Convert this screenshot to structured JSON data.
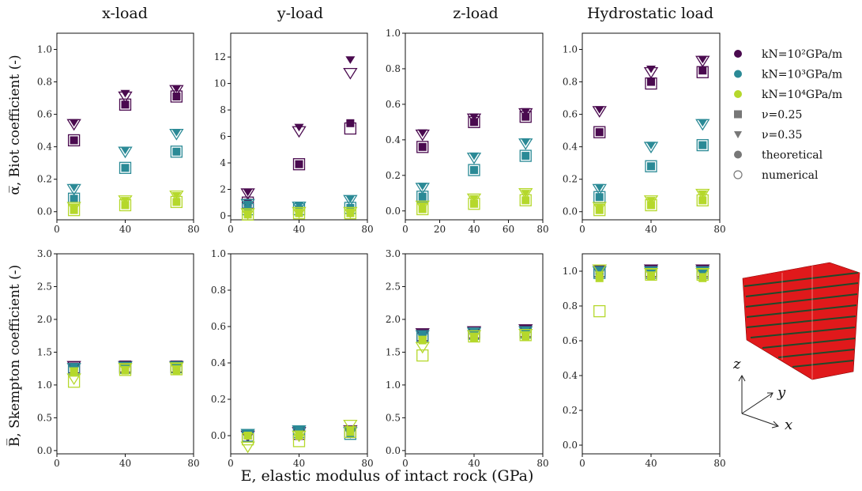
{
  "figure": {
    "column_titles": [
      "x-load",
      "y-load",
      "z-load",
      "Hydrostatic load"
    ],
    "ylabel_top": "α̅, Biot coefficient (-)",
    "ylabel_bottom": "B̅, Skempton coefficient (-)",
    "xlabel": "E, elastic modulus of intact rock (GPa)",
    "legend": [
      {
        "label": "kN=10²GPa/m",
        "marker": "circle",
        "color": "#4a0a4f"
      },
      {
        "label": "kN=10³GPa/m",
        "marker": "circle",
        "color": "#2b8a96"
      },
      {
        "label": "kN=10⁴GPa/m",
        "marker": "circle",
        "color": "#b5d82c"
      },
      {
        "label": "ν=0.25",
        "marker": "square",
        "color": "#777777"
      },
      {
        "label": "ν=0.35",
        "marker": "triangle",
        "color": "#777777"
      },
      {
        "label": "theoretical",
        "marker": "circle",
        "color": "#777777"
      },
      {
        "label": "numerical",
        "marker": "open-circle",
        "color": "#777777"
      }
    ],
    "axes_labels": {
      "z": "z",
      "y": "y",
      "x": "x"
    },
    "colors": {
      "kN_1e2": "#4a0a4f",
      "kN_1e3": "#2b8a96",
      "kN_1e4": "#b5d82c",
      "cube_red": "#e0191b",
      "cube_dark": "#1f4a2a"
    }
  },
  "chart_data": [
    {
      "type": "scatter",
      "row": 0,
      "col": 0,
      "xlim": [
        0,
        80
      ],
      "ylim": [
        -0.05,
        1.1
      ],
      "xticks": [
        0,
        40,
        80
      ],
      "yticks": [
        0.0,
        0.2,
        0.4,
        0.6,
        0.8,
        1.0
      ],
      "x": [
        10,
        40,
        70
      ],
      "series": [
        {
          "kN": "1e2",
          "nu": 0.25,
          "theoretical": [
            0.44,
            0.66,
            0.71
          ],
          "numerical": [
            0.44,
            0.66,
            0.71
          ]
        },
        {
          "kN": "1e2",
          "nu": 0.35,
          "theoretical": [
            0.55,
            0.73,
            0.76
          ],
          "numerical": [
            0.54,
            0.71,
            0.75
          ]
        },
        {
          "kN": "1e3",
          "nu": 0.25,
          "theoretical": [
            0.08,
            0.27,
            0.37
          ],
          "numerical": [
            0.08,
            0.27,
            0.37
          ]
        },
        {
          "kN": "1e3",
          "nu": 0.35,
          "theoretical": [
            0.15,
            0.38,
            0.49
          ],
          "numerical": [
            0.14,
            0.37,
            0.48
          ]
        },
        {
          "kN": "1e4",
          "nu": 0.25,
          "theoretical": [
            0.01,
            0.04,
            0.06
          ],
          "numerical": [
            0.01,
            0.04,
            0.06
          ]
        },
        {
          "kN": "1e4",
          "nu": 0.35,
          "theoretical": [
            0.03,
            0.07,
            0.1
          ],
          "numerical": [
            0.03,
            0.07,
            0.1
          ]
        }
      ]
    },
    {
      "type": "scatter",
      "row": 0,
      "col": 1,
      "xlim": [
        0,
        80
      ],
      "ylim": [
        -0.3,
        13.8
      ],
      "xticks": [
        0,
        40,
        80
      ],
      "yticks": [
        0,
        2,
        4,
        6,
        8,
        10,
        12
      ],
      "x": [
        10,
        40,
        70
      ],
      "series": [
        {
          "kN": "1e2",
          "nu": 0.25,
          "theoretical": [
            1.0,
            3.9,
            7.0
          ],
          "numerical": [
            1.0,
            3.9,
            6.6
          ]
        },
        {
          "kN": "1e2",
          "nu": 0.35,
          "theoretical": [
            1.8,
            6.7,
            11.8
          ],
          "numerical": [
            1.7,
            6.4,
            10.8
          ]
        },
        {
          "kN": "1e3",
          "nu": 0.25,
          "theoretical": [
            0.5,
            0.5,
            0.6
          ],
          "numerical": [
            0.5,
            0.5,
            0.6
          ]
        },
        {
          "kN": "1e3",
          "nu": 0.35,
          "theoretical": [
            0.9,
            0.8,
            1.3
          ],
          "numerical": [
            0.9,
            0.7,
            1.2
          ]
        },
        {
          "kN": "1e4",
          "nu": 0.25,
          "theoretical": [
            0.1,
            0.2,
            0.2
          ],
          "numerical": [
            0.1,
            0.2,
            0.2
          ]
        },
        {
          "kN": "1e4",
          "nu": 0.35,
          "theoretical": [
            0.2,
            0.3,
            0.3
          ],
          "numerical": [
            0.2,
            0.3,
            0.3
          ]
        }
      ]
    },
    {
      "type": "scatter",
      "row": 0,
      "col": 2,
      "xlim": [
        0,
        80
      ],
      "ylim": [
        -0.05,
        1.0
      ],
      "xticks": [
        0,
        20,
        40,
        60,
        80
      ],
      "yticks": [
        0.0,
        0.2,
        0.4,
        0.6,
        0.8,
        1.0
      ],
      "x": [
        10,
        40,
        70
      ],
      "series": [
        {
          "kN": "1e2",
          "nu": 0.25,
          "theoretical": [
            0.36,
            0.5,
            0.53
          ],
          "numerical": [
            0.36,
            0.5,
            0.53
          ]
        },
        {
          "kN": "1e2",
          "nu": 0.35,
          "theoretical": [
            0.44,
            0.53,
            0.56
          ],
          "numerical": [
            0.43,
            0.52,
            0.55
          ]
        },
        {
          "kN": "1e3",
          "nu": 0.25,
          "theoretical": [
            0.08,
            0.23,
            0.31
          ],
          "numerical": [
            0.08,
            0.23,
            0.31
          ]
        },
        {
          "kN": "1e3",
          "nu": 0.35,
          "theoretical": [
            0.14,
            0.31,
            0.39
          ],
          "numerical": [
            0.13,
            0.3,
            0.38
          ]
        },
        {
          "kN": "1e4",
          "nu": 0.25,
          "theoretical": [
            0.01,
            0.04,
            0.06
          ],
          "numerical": [
            0.01,
            0.04,
            0.06
          ]
        },
        {
          "kN": "1e4",
          "nu": 0.35,
          "theoretical": [
            0.03,
            0.07,
            0.1
          ],
          "numerical": [
            0.03,
            0.07,
            0.1
          ]
        }
      ]
    },
    {
      "type": "scatter",
      "row": 0,
      "col": 3,
      "xlim": [
        0,
        80
      ],
      "ylim": [
        -0.05,
        1.1
      ],
      "xticks": [
        0,
        40,
        80
      ],
      "yticks": [
        0.0,
        0.2,
        0.4,
        0.6,
        0.8,
        1.0
      ],
      "x": [
        10,
        40,
        70
      ],
      "series": [
        {
          "kN": "1e2",
          "nu": 0.25,
          "theoretical": [
            0.49,
            0.8,
            0.87
          ],
          "numerical": [
            0.49,
            0.79,
            0.86
          ]
        },
        {
          "kN": "1e2",
          "nu": 0.35,
          "theoretical": [
            0.63,
            0.88,
            0.94
          ],
          "numerical": [
            0.62,
            0.86,
            0.93
          ]
        },
        {
          "kN": "1e3",
          "nu": 0.25,
          "theoretical": [
            0.09,
            0.28,
            0.41
          ],
          "numerical": [
            0.09,
            0.28,
            0.41
          ]
        },
        {
          "kN": "1e3",
          "nu": 0.35,
          "theoretical": [
            0.15,
            0.41,
            0.55
          ],
          "numerical": [
            0.14,
            0.4,
            0.54
          ]
        },
        {
          "kN": "1e4",
          "nu": 0.25,
          "theoretical": [
            0.01,
            0.04,
            0.07
          ],
          "numerical": [
            0.01,
            0.04,
            0.07
          ]
        },
        {
          "kN": "1e4",
          "nu": 0.35,
          "theoretical": [
            0.03,
            0.07,
            0.11
          ],
          "numerical": [
            0.03,
            0.07,
            0.11
          ]
        }
      ]
    },
    {
      "type": "scatter",
      "row": 1,
      "col": 0,
      "xlim": [
        0,
        80
      ],
      "ylim": [
        -0.05,
        3.0
      ],
      "xticks": [
        0,
        40,
        80
      ],
      "yticks": [
        0.0,
        0.5,
        1.0,
        1.5,
        2.0,
        2.5,
        3.0
      ],
      "x": [
        10,
        40,
        70
      ],
      "series": [
        {
          "kN": "1e2",
          "nu": 0.25,
          "theoretical": [
            1.27,
            1.28,
            1.28
          ],
          "numerical": [
            1.27,
            1.28,
            1.28
          ]
        },
        {
          "kN": "1e2",
          "nu": 0.35,
          "theoretical": [
            1.29,
            1.29,
            1.29
          ],
          "numerical": [
            1.29,
            1.29,
            1.29
          ]
        },
        {
          "kN": "1e3",
          "nu": 0.25,
          "theoretical": [
            1.24,
            1.26,
            1.27
          ],
          "numerical": [
            1.24,
            1.26,
            1.27
          ]
        },
        {
          "kN": "1e3",
          "nu": 0.35,
          "theoretical": [
            1.27,
            1.28,
            1.28
          ],
          "numerical": [
            1.26,
            1.28,
            1.28
          ]
        },
        {
          "kN": "1e4",
          "nu": 0.25,
          "theoretical": [
            1.2,
            1.22,
            1.22
          ],
          "numerical": [
            1.05,
            1.23,
            1.24
          ]
        },
        {
          "kN": "1e4",
          "nu": 0.35,
          "theoretical": [
            1.22,
            1.24,
            1.25
          ],
          "numerical": [
            1.1,
            1.26,
            1.27
          ]
        }
      ]
    },
    {
      "type": "scatter",
      "row": 1,
      "col": 1,
      "xlim": [
        0,
        80
      ],
      "ylim": [
        -0.1,
        1.0
      ],
      "xticks": [
        0,
        40,
        80
      ],
      "yticks": [
        0.0,
        0.2,
        0.4,
        0.6,
        0.8,
        1.0
      ],
      "x": [
        10,
        40,
        70
      ],
      "series": [
        {
          "kN": "1e2",
          "nu": 0.25,
          "theoretical": [
            0.0,
            0.01,
            0.02
          ],
          "numerical": [
            0.0,
            0.01,
            0.02
          ]
        },
        {
          "kN": "1e2",
          "nu": 0.35,
          "theoretical": [
            0.0,
            0.02,
            0.03
          ],
          "numerical": [
            0.0,
            0.02,
            0.03
          ]
        },
        {
          "kN": "1e3",
          "nu": 0.25,
          "theoretical": [
            0.0,
            0.02,
            0.01
          ],
          "numerical": [
            0.0,
            0.02,
            0.01
          ]
        },
        {
          "kN": "1e3",
          "nu": 0.35,
          "theoretical": [
            0.01,
            0.03,
            0.02
          ],
          "numerical": [
            0.01,
            0.03,
            0.02
          ]
        },
        {
          "kN": "1e4",
          "nu": 0.25,
          "theoretical": [
            0.0,
            0.0,
            0.02
          ],
          "numerical": [
            -0.02,
            -0.03,
            0.02
          ]
        },
        {
          "kN": "1e4",
          "nu": 0.35,
          "theoretical": [
            0.0,
            0.01,
            0.03
          ],
          "numerical": [
            -0.06,
            0.0,
            0.06
          ]
        }
      ]
    },
    {
      "type": "scatter",
      "row": 1,
      "col": 2,
      "xlim": [
        0,
        80
      ],
      "ylim": [
        -0.05,
        3.0
      ],
      "xticks": [
        0,
        40,
        80
      ],
      "yticks": [
        0.0,
        0.5,
        1.0,
        1.5,
        2.0,
        2.5,
        3.0
      ],
      "x": [
        10,
        40,
        70
      ],
      "series": [
        {
          "kN": "1e2",
          "nu": 0.25,
          "theoretical": [
            1.76,
            1.8,
            1.82
          ],
          "numerical": [
            1.76,
            1.8,
            1.82
          ]
        },
        {
          "kN": "1e2",
          "nu": 0.35,
          "theoretical": [
            1.79,
            1.82,
            1.85
          ],
          "numerical": [
            1.79,
            1.82,
            1.85
          ]
        },
        {
          "kN": "1e3",
          "nu": 0.25,
          "theoretical": [
            1.74,
            1.78,
            1.8
          ],
          "numerical": [
            1.74,
            1.78,
            1.8
          ]
        },
        {
          "kN": "1e3",
          "nu": 0.35,
          "theoretical": [
            1.77,
            1.81,
            1.83
          ],
          "numerical": [
            1.76,
            1.8,
            1.82
          ]
        },
        {
          "kN": "1e4",
          "nu": 0.25,
          "theoretical": [
            1.68,
            1.72,
            1.74
          ],
          "numerical": [
            1.45,
            1.74,
            1.76
          ]
        },
        {
          "kN": "1e4",
          "nu": 0.35,
          "theoretical": [
            1.7,
            1.75,
            1.77
          ],
          "numerical": [
            1.58,
            1.76,
            1.78
          ]
        }
      ]
    },
    {
      "type": "scatter",
      "row": 1,
      "col": 3,
      "xlim": [
        0,
        80
      ],
      "ylim": [
        -0.05,
        1.1
      ],
      "xticks": [
        0,
        40,
        80
      ],
      "yticks": [
        0.0,
        0.2,
        0.4,
        0.6,
        0.8,
        1.0
      ],
      "x": [
        10,
        40,
        70
      ],
      "series": [
        {
          "kN": "1e2",
          "nu": 0.25,
          "theoretical": [
            1.0,
            1.0,
            1.0
          ],
          "numerical": [
            1.0,
            1.0,
            1.0
          ]
        },
        {
          "kN": "1e2",
          "nu": 0.35,
          "theoretical": [
            1.01,
            1.01,
            1.01
          ],
          "numerical": [
            1.01,
            1.01,
            1.01
          ]
        },
        {
          "kN": "1e3",
          "nu": 0.25,
          "theoretical": [
            0.99,
            0.99,
            0.99
          ],
          "numerical": [
            0.99,
            0.99,
            0.99
          ]
        },
        {
          "kN": "1e3",
          "nu": 0.35,
          "theoretical": [
            1.0,
            1.0,
            1.0
          ],
          "numerical": [
            1.0,
            1.0,
            1.0
          ]
        },
        {
          "kN": "1e4",
          "nu": 0.25,
          "theoretical": [
            0.96,
            0.97,
            0.96
          ],
          "numerical": [
            0.77,
            0.98,
            0.98
          ]
        },
        {
          "kN": "1e4",
          "nu": 0.35,
          "theoretical": [
            0.98,
            0.98,
            0.97
          ],
          "numerical": [
            1.01,
            0.99,
            0.99
          ]
        }
      ]
    }
  ]
}
